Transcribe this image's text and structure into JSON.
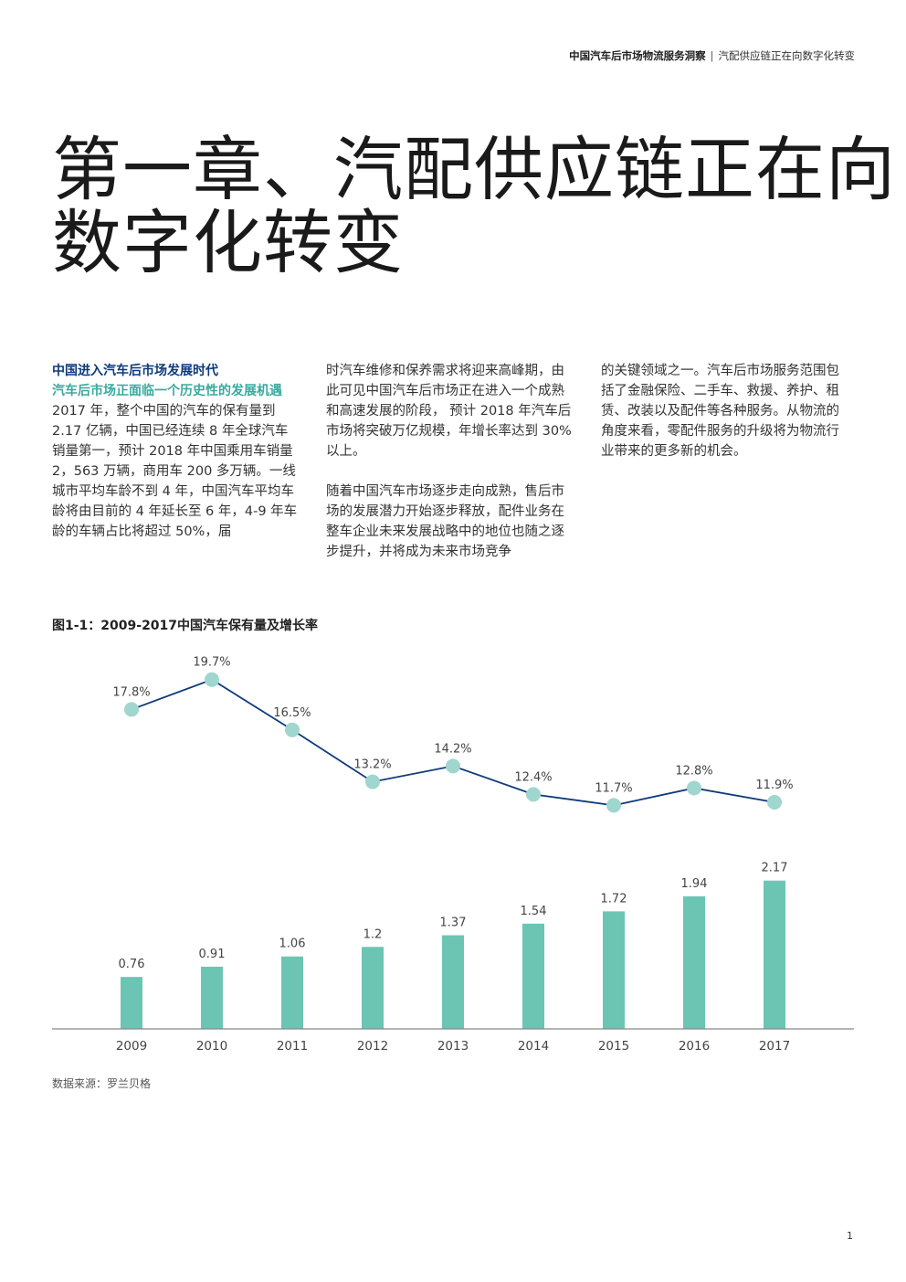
{
  "header": {
    "title_bold": "中国汽车后市场物流服务洞察",
    "separator": "|",
    "subtitle": "汽配供应链正在向数字化转变"
  },
  "chapter": {
    "title_line1": "第一章、汽配供应链正在向",
    "title_line2": "数字化转变"
  },
  "body": {
    "section_heading": "中国进入汽车后市场发展时代",
    "section_subheading": "汽车后市场正面临一个历史性的发展机遇",
    "col1_para1": "2017 年，整个中国的汽车的保有量到 2.17 亿辆，中国已经连续 8 年全球汽车销量第一，预计 2018 年中国乘用车销量 2，563 万辆，商用车 200 多万辆。一线城市平均车龄不到 4 年，中国汽车平均车龄将由目前的 4 年延长至 6 年，4-9 年车龄的车辆占比将超过 50%，届",
    "col2_para1": "时汽车维修和保养需求将迎来高峰期，由此可见中国汽车后市场正在进入一个成熟和高速发展的阶段， 预计 2018 年汽车后市场将突破万亿规模，年增长率达到 30% 以上。",
    "col2_para2": "随着中国汽车市场逐步走向成熟，售后市场的发展潜力开始逐步释放，配件业务在整车企业未来发展战略中的地位也随之逐步提升，并将成为未来市场竞争",
    "col3_para1": "的关键领域之一。汽车后市场服务范围包括了金融保险、二手车、救援、养护、租赁、改装以及配件等各种服务。从物流的角度来看，零配件服务的升级将为物流行业带来的更多新的机会。"
  },
  "figure": {
    "caption": "图1-1：2009-2017中国汽车保有量及增长率",
    "source": "数据来源：罗兰贝格"
  },
  "chart_data": {
    "type": "bar",
    "title": "",
    "categories": [
      "2009",
      "2010",
      "2011",
      "2012",
      "2013",
      "2014",
      "2015",
      "2016",
      "2017"
    ],
    "series": [
      {
        "type": "bar",
        "values": [
          0.76,
          0.91,
          1.06,
          1.2,
          1.37,
          1.54,
          1.72,
          1.94,
          2.17
        ],
        "labels": [
          "0.76",
          "0.91",
          "1.06",
          "1.2",
          "1.37",
          "1.54",
          "1.72",
          "1.94",
          "2.17"
        ],
        "color": "#6cc5b3"
      },
      {
        "type": "line",
        "values": [
          17.8,
          19.7,
          16.5,
          13.2,
          14.2,
          12.4,
          11.7,
          12.8,
          11.9
        ],
        "labels": [
          "17.8%",
          "19.7%",
          "16.5%",
          "13.2%",
          "14.2%",
          "12.4%",
          "11.7%",
          "12.8%",
          "11.9%"
        ],
        "line_color": "#0d3b7a",
        "marker_color": "#9fd6cd"
      }
    ],
    "xlabel": "",
    "ylabel": "",
    "ylim_bar": [
      0,
      2.3
    ],
    "ylim_line": [
      11.2,
      19.8
    ],
    "grid": false,
    "axis_color": "#888888",
    "label_color": "#444444"
  },
  "page": {
    "number": "1"
  }
}
